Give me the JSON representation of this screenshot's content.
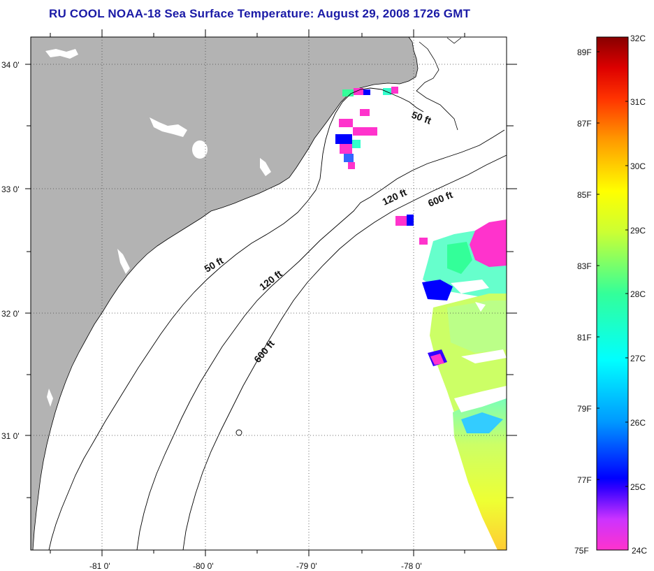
{
  "title": "RU COOL  NOAA-18  Sea Surface Temperature:  August 29, 2008 1726 GMT",
  "axes": {
    "lat_labels": [
      "34 0'",
      "33 0'",
      "32 0'",
      "31 0'"
    ],
    "lon_labels": [
      "-81 0'",
      "-80 0'",
      "-79 0'",
      "-78 0'"
    ]
  },
  "depth_labels": {
    "north_50": "50 ft",
    "north_120": "120 ft",
    "north_600": "600 ft",
    "mid_50": "50 ft",
    "mid_120": "120 ft",
    "south_600": "600 ft"
  },
  "colorbar": {
    "celsius_labels": [
      "32C",
      "31C",
      "30C",
      "29C",
      "28C",
      "27C",
      "26C",
      "25C",
      "24C"
    ],
    "fahrenheit_labels": [
      "89F",
      "87F",
      "85F",
      "83F",
      "81F",
      "79F",
      "77F",
      "75F"
    ]
  },
  "colors": {
    "title": "#1a1aa6",
    "land": "#b3b3b3",
    "ocean": "#ffffff"
  }
}
